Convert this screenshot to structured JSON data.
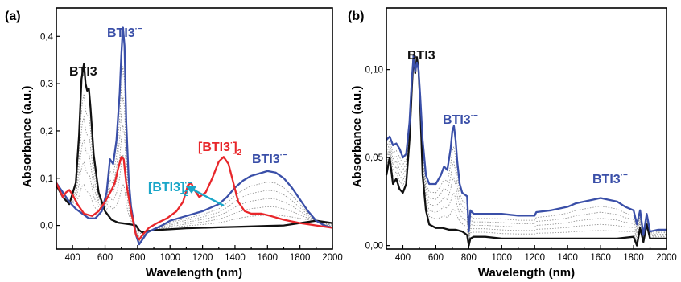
{
  "panels": [
    {
      "label": "(a)"
    },
    {
      "label": "(b)"
    }
  ],
  "chart_data": [
    {
      "type": "line",
      "panel": "(a)",
      "xlabel": "Wavelength (nm)",
      "ylabel": "Absorbance (a.u.)",
      "xlim": [
        300,
        2000
      ],
      "ylim": [
        -0.05,
        0.46
      ],
      "x_ticks": [
        "400",
        "600",
        "800",
        "1000",
        "1200",
        "1400",
        "1600",
        "1800",
        "2000"
      ],
      "y_ticks": [
        "0,0",
        "0,1",
        "0,2",
        "0,3",
        "0,4"
      ],
      "x_tick_values": [
        400,
        600,
        800,
        1000,
        1200,
        1400,
        1600,
        1800,
        2000
      ],
      "y_tick_values": [
        0,
        0.1,
        0.2,
        0.3,
        0.4
      ],
      "colors": {
        "black": "#111111",
        "blue": "#3a4fa8",
        "red": "#e8262a",
        "cyan": "#1aa6c8",
        "gray": "#8a8a8a"
      },
      "annotations": {
        "bti3": "BTI3",
        "bti3_rad": "BTI3",
        "bti3_rad_sup": "·−",
        "dimer_red": "[BTI3",
        "dimer_red_sup": "·",
        "dimer_red_close": "]",
        "dimer_red_sub": "2",
        "dimer_cyan": "[BTI3]",
        "dimer_cyan_sup": "·−",
        "dimer_cyan_sub": "2",
        "bti3_rad2": "BTI3",
        "bti3_rad2_sup": "·−"
      },
      "series": [
        {
          "color": "black",
          "x": [
            300,
            340,
            380,
            420,
            440,
            455,
            470,
            480,
            490,
            500,
            510,
            530,
            560,
            600,
            640,
            680,
            720,
            760,
            790,
            810,
            830,
            860,
            900,
            1000,
            1100,
            1200,
            1300,
            1400,
            1500,
            1600,
            1700,
            1800,
            1900,
            2000
          ],
          "y": [
            0.085,
            0.06,
            0.045,
            0.09,
            0.19,
            0.31,
            0.342,
            0.3,
            0.285,
            0.29,
            0.25,
            0.15,
            0.07,
            0.03,
            0.012,
            0.006,
            0.004,
            0.002,
            0.0,
            -0.01,
            -0.015,
            -0.012,
            -0.01,
            -0.008,
            -0.006,
            -0.005,
            -0.004,
            -0.003,
            -0.002,
            -0.001,
            0.0,
            0.005,
            0.01,
            0.005
          ]
        },
        {
          "color": "blue",
          "x": [
            300,
            340,
            380,
            420,
            460,
            500,
            540,
            580,
            610,
            630,
            650,
            670,
            690,
            700,
            710,
            720,
            730,
            745,
            760,
            790,
            810,
            830,
            860,
            900,
            950,
            1000,
            1100,
            1200,
            1300,
            1350,
            1400,
            1450,
            1500,
            1550,
            1600,
            1650,
            1700,
            1750,
            1800,
            1850,
            1900,
            1950,
            2000
          ],
          "y": [
            0.09,
            0.07,
            0.05,
            0.035,
            0.025,
            0.015,
            0.015,
            0.03,
            0.07,
            0.14,
            0.13,
            0.18,
            0.28,
            0.36,
            0.42,
            0.38,
            0.22,
            0.1,
            0.04,
            -0.02,
            -0.04,
            -0.03,
            -0.015,
            -0.008,
            0.0,
            0.01,
            0.02,
            0.03,
            0.045,
            0.06,
            0.08,
            0.095,
            0.105,
            0.11,
            0.115,
            0.112,
            0.1,
            0.08,
            0.055,
            0.03,
            0.01,
            0.0,
            -0.005
          ]
        },
        {
          "color": "red",
          "x": [
            300,
            340,
            360,
            380,
            400,
            430,
            470,
            520,
            560,
            600,
            640,
            660,
            680,
            700,
            715,
            730,
            760,
            790,
            810,
            830,
            870,
            920,
            980,
            1040,
            1080,
            1110,
            1130,
            1150,
            1180,
            1220,
            1260,
            1300,
            1330,
            1360,
            1390,
            1420,
            1460,
            1500,
            1560,
            1620,
            1700,
            1800,
            1900,
            2000
          ],
          "y": [
            0.09,
            0.06,
            0.07,
            0.075,
            0.065,
            0.045,
            0.025,
            0.02,
            0.03,
            0.05,
            0.075,
            0.09,
            0.12,
            0.145,
            0.14,
            0.09,
            0.03,
            -0.02,
            -0.03,
            -0.02,
            -0.005,
            0.005,
            0.015,
            0.03,
            0.05,
            0.085,
            0.09,
            0.075,
            0.06,
            0.07,
            0.1,
            0.135,
            0.145,
            0.13,
            0.09,
            0.05,
            0.03,
            0.025,
            0.025,
            0.02,
            0.012,
            0.005,
            0.0,
            -0.005
          ]
        }
      ]
    },
    {
      "type": "line",
      "panel": "(b)",
      "xlabel": "Wavelength (nm)",
      "ylabel": "Absorbance (a.u.)",
      "xlim": [
        300,
        2000
      ],
      "ylim": [
        -0.002,
        0.135
      ],
      "x_ticks": [
        "400",
        "600",
        "800",
        "1000",
        "1200",
        "1400",
        "1600",
        "1800",
        "2000"
      ],
      "y_ticks": [
        "0,00",
        "0,05",
        "0,10"
      ],
      "x_tick_values": [
        400,
        600,
        800,
        1000,
        1200,
        1400,
        1600,
        1800,
        2000
      ],
      "y_tick_values": [
        0,
        0.05,
        0.1
      ],
      "colors": {
        "black": "#111111",
        "blue": "#3a4fa8",
        "gray": "#8a8a8a"
      },
      "annotations": {
        "bti3": "BTI3",
        "bti3_rad": "BTI3",
        "bti3_rad_sup": "·−",
        "bti3_rad2": "BTI3",
        "bti3_rad2_sup": "·−"
      },
      "series": [
        {
          "color": "black",
          "x": [
            300,
            320,
            340,
            360,
            380,
            400,
            420,
            440,
            455,
            465,
            475,
            485,
            495,
            505,
            520,
            540,
            560,
            600,
            640,
            680,
            720,
            760,
            790,
            800,
            810,
            830,
            900,
            1000,
            1100,
            1200,
            1300,
            1400,
            1500,
            1600,
            1700,
            1800,
            1820,
            1840,
            1860,
            1880,
            1900,
            1950,
            2000
          ],
          "y": [
            0.04,
            0.05,
            0.035,
            0.038,
            0.032,
            0.03,
            0.035,
            0.06,
            0.09,
            0.108,
            0.098,
            0.107,
            0.1,
            0.08,
            0.04,
            0.02,
            0.012,
            0.01,
            0.01,
            0.009,
            0.009,
            0.008,
            0.006,
            0.0,
            0.004,
            0.005,
            0.005,
            0.004,
            0.004,
            0.004,
            0.004,
            0.004,
            0.004,
            0.004,
            0.004,
            0.005,
            0.0,
            0.01,
            0.002,
            0.012,
            0.004,
            0.004,
            0.004
          ]
        },
        {
          "color": "blue",
          "x": [
            300,
            320,
            340,
            360,
            380,
            400,
            420,
            440,
            455,
            465,
            475,
            485,
            495,
            505,
            520,
            540,
            560,
            600,
            630,
            650,
            670,
            690,
            700,
            710,
            720,
            730,
            745,
            760,
            790,
            800,
            810,
            830,
            900,
            1000,
            1100,
            1200,
            1210,
            1300,
            1400,
            1450,
            1500,
            1550,
            1600,
            1650,
            1700,
            1750,
            1800,
            1820,
            1840,
            1860,
            1880,
            1900,
            1950,
            2000
          ],
          "y": [
            0.06,
            0.062,
            0.057,
            0.058,
            0.055,
            0.05,
            0.052,
            0.07,
            0.095,
            0.108,
            0.099,
            0.104,
            0.1,
            0.085,
            0.06,
            0.04,
            0.035,
            0.035,
            0.04,
            0.045,
            0.043,
            0.055,
            0.065,
            0.068,
            0.06,
            0.048,
            0.035,
            0.03,
            0.028,
            0.008,
            0.02,
            0.018,
            0.018,
            0.018,
            0.017,
            0.017,
            0.019,
            0.02,
            0.022,
            0.024,
            0.025,
            0.026,
            0.027,
            0.026,
            0.025,
            0.022,
            0.02,
            0.012,
            0.02,
            0.006,
            0.018,
            0.008,
            0.009,
            0.009
          ]
        }
      ]
    }
  ]
}
